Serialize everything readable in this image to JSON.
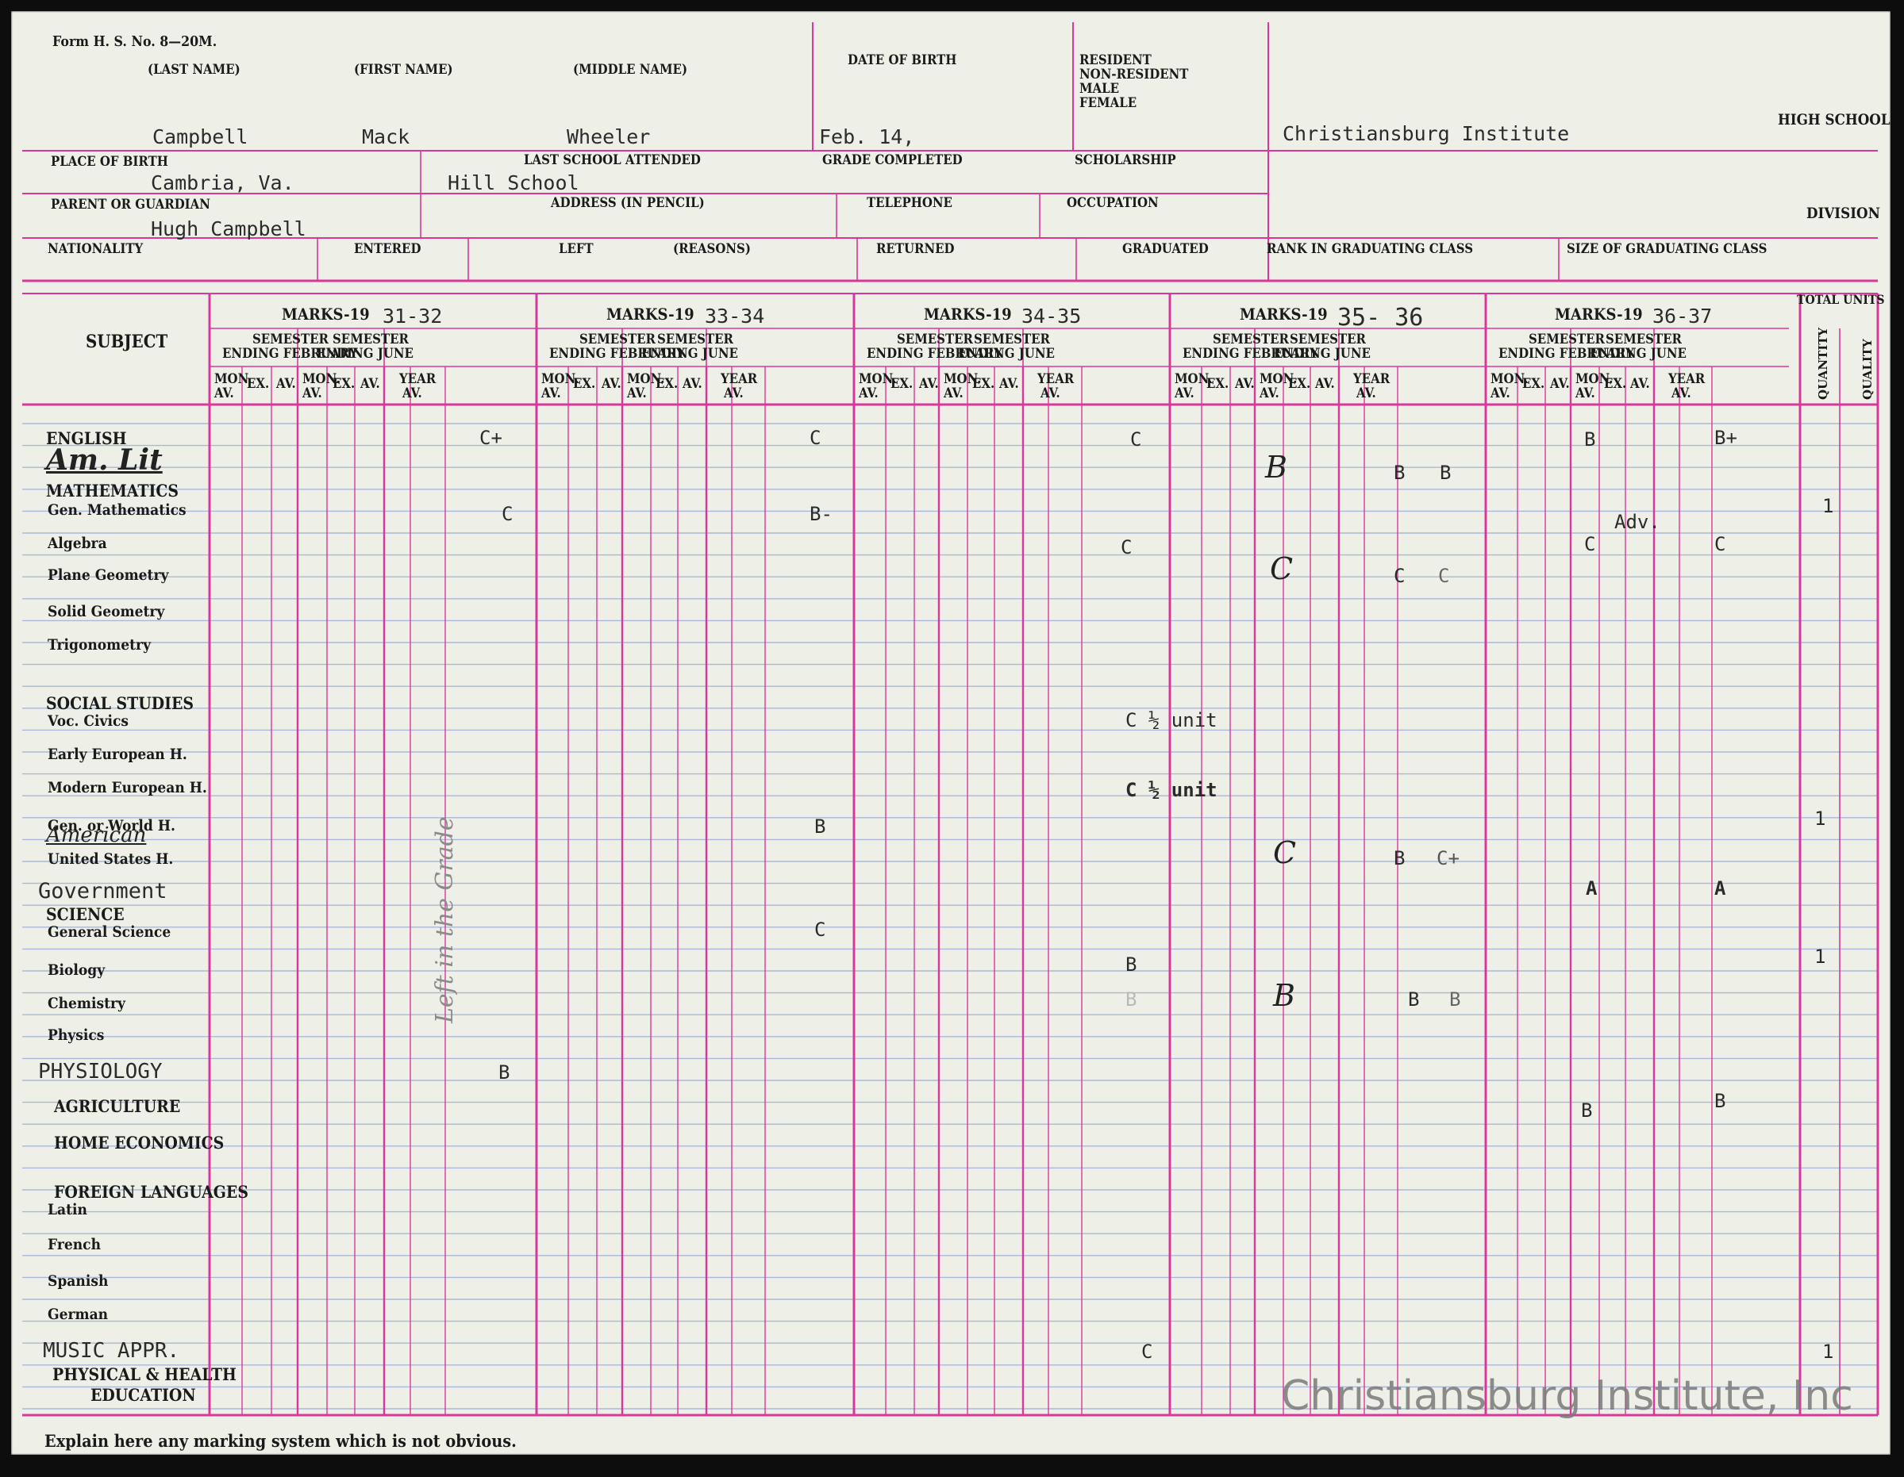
{
  "form": {
    "form_number": "Form H. S. No. 8—20M.",
    "labels": {
      "last_name": "(LAST NAME)",
      "first_name": "(FIRST NAME)",
      "middle_name": "(MIDDLE NAME)",
      "date_of_birth": "DATE OF BIRTH",
      "resident_block": [
        "RESIDENT",
        "NON-RESIDENT",
        "MALE",
        "FEMALE"
      ],
      "high_school": "HIGH SCHOOL",
      "place_of_birth": "PLACE OF BIRTH",
      "last_school": "LAST SCHOOL ATTENDED",
      "grade_completed": "GRADE COMPLETED",
      "scholarship": "SCHOLARSHIP",
      "parent": "PARENT OR GUARDIAN",
      "address": "ADDRESS (IN PENCIL)",
      "telephone": "TELEPHONE",
      "occupation": "OCCUPATION",
      "division": "DIVISION",
      "nationality": "NATIONALITY",
      "entered": "ENTERED",
      "left": "LEFT",
      "reasons": "(REASONS)",
      "returned": "RETURNED",
      "graduated": "GRADUATED",
      "rank": "RANK IN GRADUATING CLASS",
      "size": "SIZE OF GRADUATING CLASS"
    },
    "values": {
      "last_name": "Campbell",
      "first_name": "Mack",
      "middle_name": "Wheeler",
      "date_of_birth": "Feb. 14,",
      "high_school": "Christiansburg Institute",
      "place_of_birth": "Cambria, Va.",
      "last_school": "Hill School",
      "parent": "Hugh Campbell"
    }
  },
  "table": {
    "subject_header": "SUBJECT",
    "marks_prefix": "MARKS-19",
    "years": [
      "31-32",
      "33-34",
      "34-35",
      "35- 36",
      "36-37"
    ],
    "semester_feb": [
      "SEMESTER",
      "ENDING FEBRUARY"
    ],
    "semester_june": [
      "SEMESTER",
      "ENDING JUNE"
    ],
    "col_mon": [
      "MON.",
      "AV."
    ],
    "col_ex": "EX.",
    "col_av": "AV.",
    "col_year": [
      "YEAR",
      "AV."
    ],
    "total_units": "TOTAL UNITS",
    "quantity": "QUANTITY",
    "quality": "QUALITY"
  },
  "subjects": [
    {
      "label": "ENGLISH",
      "style": "head",
      "y": 0
    },
    {
      "label": "MATHEMATICS",
      "style": "head"
    },
    {
      "label": "Gen. Mathematics",
      "style": "item"
    },
    {
      "label": "Algebra",
      "style": "item"
    },
    {
      "label": "Plane Geometry",
      "style": "item"
    },
    {
      "label": "Solid Geometry",
      "style": "item"
    },
    {
      "label": "Trigonometry",
      "style": "item"
    },
    {
      "label": "SOCIAL STUDIES",
      "style": "head"
    },
    {
      "label": "Voc. Civics",
      "style": "item"
    },
    {
      "label": "Early European H.",
      "style": "item"
    },
    {
      "label": "Modern European H.",
      "style": "item"
    },
    {
      "label": "Gen. or World H.",
      "style": "item"
    },
    {
      "label": "United States H.",
      "style": "item"
    },
    {
      "label": "SCIENCE",
      "style": "head"
    },
    {
      "label": "General Science",
      "style": "item"
    },
    {
      "label": "Biology",
      "style": "item"
    },
    {
      "label": "Chemistry",
      "style": "item"
    },
    {
      "label": "Physics",
      "style": "item"
    },
    {
      "label": "AGRICULTURE",
      "style": "head"
    },
    {
      "label": "HOME ECONOMICS",
      "style": "head"
    },
    {
      "label": "FOREIGN LANGUAGES",
      "style": "head"
    },
    {
      "label": "Latin",
      "style": "item"
    },
    {
      "label": "French",
      "style": "item"
    },
    {
      "label": "Spanish",
      "style": "item"
    },
    {
      "label": "German",
      "style": "item"
    },
    {
      "label": "PHYSICAL & HEALTH",
      "style": "head"
    },
    {
      "label": "EDUCATION",
      "style": "head"
    }
  ],
  "added_subjects": {
    "am_lit": "Am. Lit",
    "american": "American",
    "government": "Government",
    "physiology": "PHYSIOLOGY",
    "music": "MUSIC APPR."
  },
  "marks": {
    "english_3132": "C+",
    "english_3334": "C",
    "english_3435": "C",
    "english_3637_feb": "B",
    "english_3637_year": "B+",
    "amlit_3536_feb": "B",
    "amlit_3536_june": "B",
    "amlit_3536_year": "B",
    "genmath_3132": "C",
    "genmath_3334": "B-",
    "genmath_units": "1",
    "algebra_3435": "C",
    "algebra_3637_feb": "C",
    "algebra_adv": "Adv.",
    "algebra_3637_year": "C",
    "plane_3536_feb": "C",
    "plane_3536_june": "C",
    "plane_3536_year": "C",
    "civics_3435": "C ½ unit",
    "modern_3435": "C ½ unit",
    "world_3334": "B",
    "world_units": "1",
    "us_3536_feb": "C",
    "us_3536_june": "B",
    "us_3536_year": "C+",
    "gov_3637_feb": "A",
    "gov_3637_year": "A",
    "gensci_3334": "C",
    "bio_3435": "B",
    "bio_units": "1",
    "chem_3435": "B",
    "chem_3536_feb": "B",
    "chem_3536_june": "B",
    "chem_3536_year": "B",
    "physiology_3132": "B",
    "agri_3637_feb": "B",
    "agri_3637_year": "B",
    "music_3435": "C",
    "music_units": "1",
    "margin_note": "Left in the Grade"
  },
  "footer": {
    "explain": "Explain here any marking system which is not obvious."
  },
  "watermark": "Christiansburg Institute, Inc",
  "colors": {
    "paper": "#eef0e8",
    "magenta_rule": "#d9389a",
    "blue_rule": "#a9b8d6"
  }
}
